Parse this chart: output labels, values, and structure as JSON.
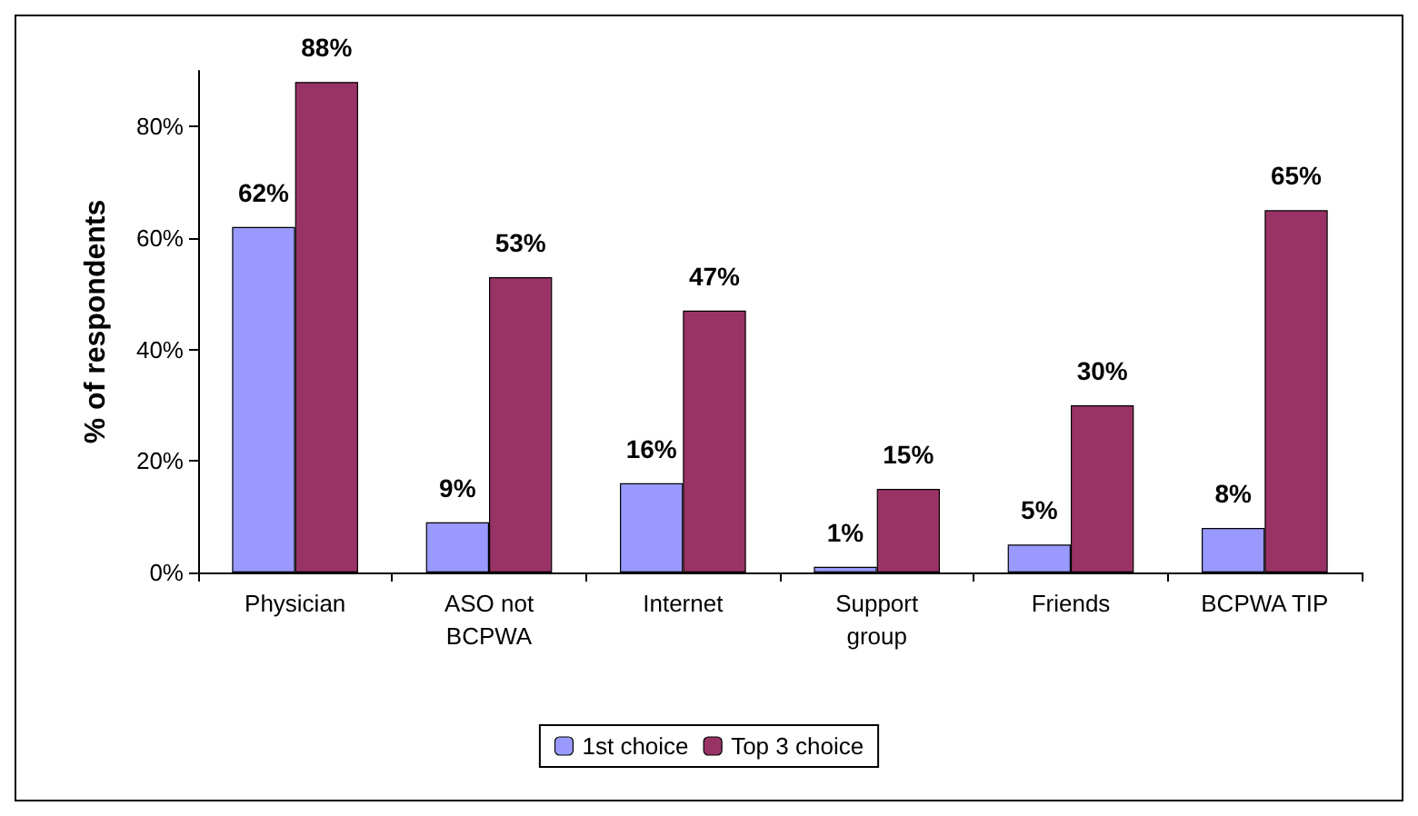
{
  "chart_data": {
    "type": "bar",
    "ylabel": "% of respondents",
    "categories": [
      "Physician",
      "ASO not\nBCPWA",
      "Internet",
      "Support\ngroup",
      "Friends",
      "BCPWA TIP"
    ],
    "series": [
      {
        "name": "1st choice",
        "color": "#9999ff",
        "values": [
          62,
          9,
          16,
          1,
          5,
          8
        ],
        "value_labels": [
          "62%",
          "9%",
          "16%",
          "1%",
          "5%",
          "8%"
        ]
      },
      {
        "name": "Top 3 choice",
        "color": "#993366",
        "values": [
          88,
          53,
          47,
          15,
          30,
          65
        ],
        "value_labels": [
          "88%",
          "53%",
          "47%",
          "15%",
          "30%",
          "65%"
        ]
      }
    ],
    "ylim": [
      0,
      90
    ],
    "yticks": [
      {
        "value": 0,
        "label": "0%"
      },
      {
        "value": 20,
        "label": "20%"
      },
      {
        "value": 40,
        "label": "40%"
      },
      {
        "value": 60,
        "label": "60%"
      },
      {
        "value": 80,
        "label": "80%"
      }
    ],
    "grid": false,
    "legend": "bottom"
  }
}
